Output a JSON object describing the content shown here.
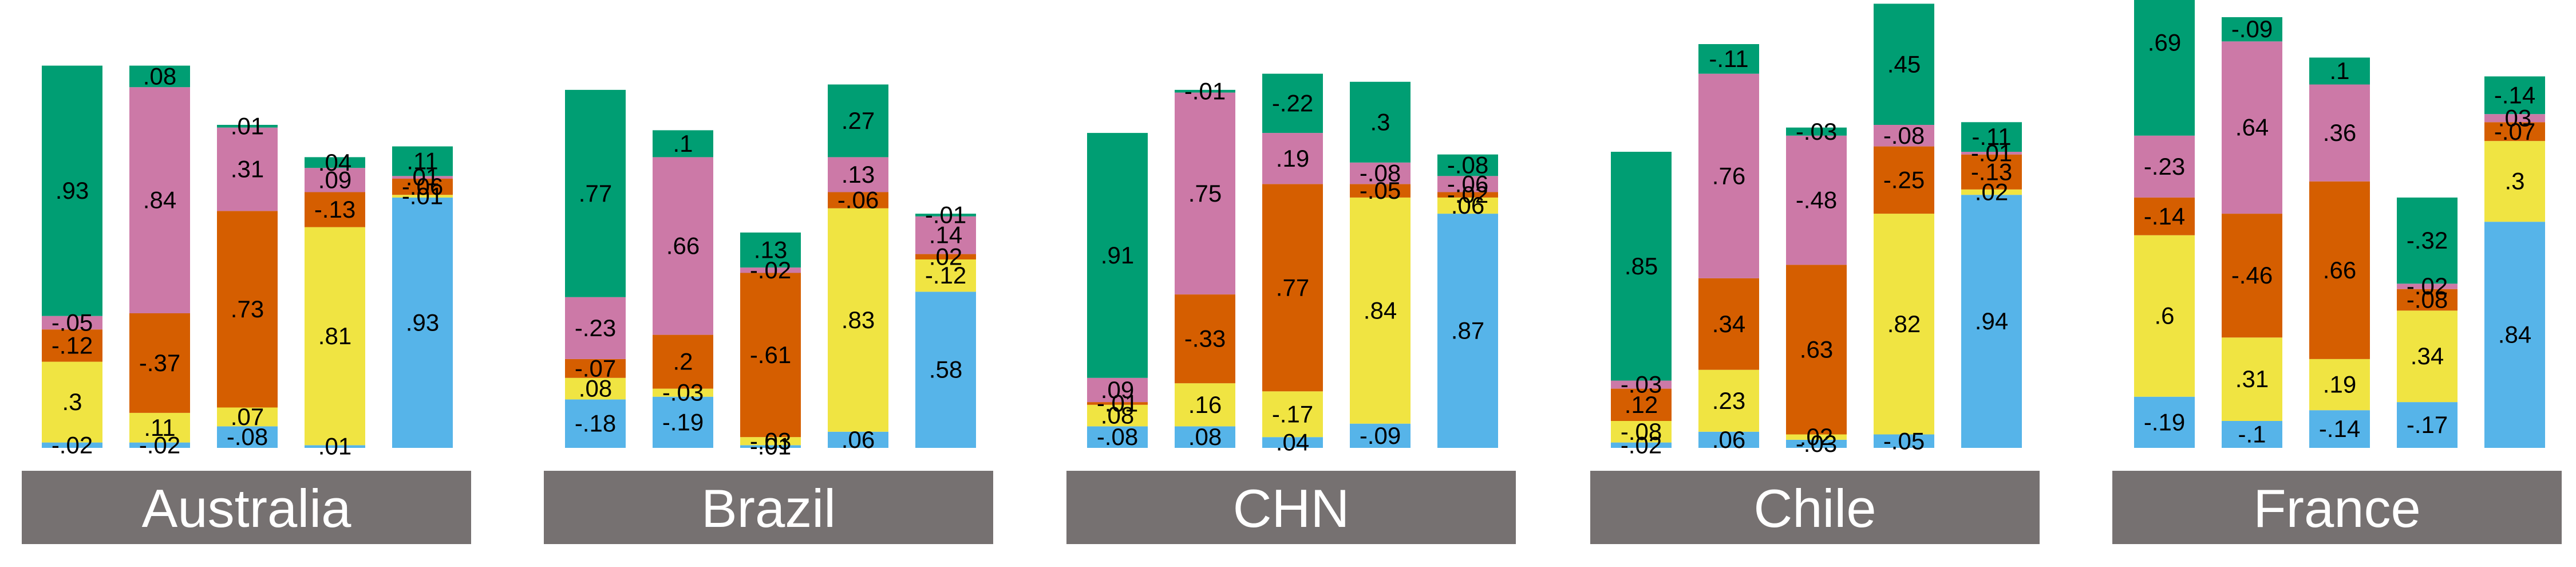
{
  "chart_data": {
    "type": "bar",
    "stacked": true,
    "colors": {
      "blue": "#56B4E9",
      "yellow": "#F0E442",
      "orange": "#D55E00",
      "pink": "#CC79A7",
      "green": "#009E73",
      "label_band": "#767171"
    },
    "panels": [
      {
        "name": "Australia",
        "bars": [
          {
            "segments": [
              {
                "c": "blue",
                "v": -0.02
              },
              {
                "c": "yellow",
                "v": 0.3
              },
              {
                "c": "orange",
                "v": -0.12
              },
              {
                "c": "pink",
                "v": -0.05
              },
              {
                "c": "green",
                "v": 0.93
              }
            ]
          },
          {
            "segments": [
              {
                "c": "blue",
                "v": -0.02
              },
              {
                "c": "yellow",
                "v": 0.11
              },
              {
                "c": "orange",
                "v": -0.37
              },
              {
                "c": "pink",
                "v": 0.84
              },
              {
                "c": "green",
                "v": 0.08
              }
            ]
          },
          {
            "segments": [
              {
                "c": "blue",
                "v": -0.08
              },
              {
                "c": "yellow",
                "v": 0.07
              },
              {
                "c": "orange",
                "v": 0.73
              },
              {
                "c": "pink",
                "v": 0.31
              },
              {
                "c": "green",
                "v": 0.01
              }
            ]
          },
          {
            "segments": [
              {
                "c": "blue",
                "v": 0.01
              },
              {
                "c": "yellow",
                "v": 0.81
              },
              {
                "c": "orange",
                "v": -0.13
              },
              {
                "c": "pink",
                "v": 0.09
              },
              {
                "c": "green",
                "v": 0.04
              }
            ]
          },
          {
            "segments": [
              {
                "c": "blue",
                "v": 0.93
              },
              {
                "c": "yellow",
                "v": -0.01
              },
              {
                "c": "orange",
                "v": -0.06
              },
              {
                "c": "pink",
                "v": 0.01
              },
              {
                "c": "green",
                "v": 0.11
              }
            ]
          }
        ]
      },
      {
        "name": "Brazil",
        "bars": [
          {
            "segments": [
              {
                "c": "blue",
                "v": -0.18
              },
              {
                "c": "yellow",
                "v": 0.08
              },
              {
                "c": "orange",
                "v": -0.07
              },
              {
                "c": "pink",
                "v": -0.23
              },
              {
                "c": "green",
                "v": 0.77
              }
            ]
          },
          {
            "segments": [
              {
                "c": "blue",
                "v": -0.19
              },
              {
                "c": "yellow",
                "v": -0.03
              },
              {
                "c": "orange",
                "v": 0.2
              },
              {
                "c": "pink",
                "v": 0.66
              },
              {
                "c": "green",
                "v": 0.1
              }
            ]
          },
          {
            "segments": [
              {
                "c": "blue",
                "v": -0.01
              },
              {
                "c": "yellow",
                "v": -0.03
              },
              {
                "c": "orange",
                "v": -0.61
              },
              {
                "c": "pink",
                "v": -0.02
              },
              {
                "c": "green",
                "v": 0.13
              }
            ]
          },
          {
            "segments": [
              {
                "c": "blue",
                "v": 0.06
              },
              {
                "c": "yellow",
                "v": 0.83
              },
              {
                "c": "orange",
                "v": -0.06
              },
              {
                "c": "pink",
                "v": 0.13
              },
              {
                "c": "green",
                "v": 0.27
              }
            ]
          },
          {
            "segments": [
              {
                "c": "blue",
                "v": 0.58
              },
              {
                "c": "yellow",
                "v": -0.12
              },
              {
                "c": "orange",
                "v": 0.02
              },
              {
                "c": "pink",
                "v": 0.14
              },
              {
                "c": "green",
                "v": -0.01
              }
            ]
          }
        ]
      },
      {
        "name": "CHN",
        "bars": [
          {
            "segments": [
              {
                "c": "blue",
                "v": -0.08
              },
              {
                "c": "yellow",
                "v": 0.08
              },
              {
                "c": "orange",
                "v": -0.01
              },
              {
                "c": "pink",
                "v": 0.09
              },
              {
                "c": "green",
                "v": 0.91
              }
            ]
          },
          {
            "segments": [
              {
                "c": "blue",
                "v": 0.08
              },
              {
                "c": "yellow",
                "v": 0.16
              },
              {
                "c": "orange",
                "v": -0.33
              },
              {
                "c": "pink",
                "v": 0.75
              },
              {
                "c": "green",
                "v": -0.01
              }
            ]
          },
          {
            "segments": [
              {
                "c": "blue",
                "v": 0.04
              },
              {
                "c": "yellow",
                "v": -0.17
              },
              {
                "c": "orange",
                "v": 0.77
              },
              {
                "c": "pink",
                "v": 0.19
              },
              {
                "c": "green",
                "v": -0.22
              }
            ]
          },
          {
            "segments": [
              {
                "c": "blue",
                "v": -0.09
              },
              {
                "c": "yellow",
                "v": 0.84
              },
              {
                "c": "orange",
                "v": -0.05
              },
              {
                "c": "pink",
                "v": -0.08
              },
              {
                "c": "green",
                "v": 0.3
              }
            ]
          },
          {
            "segments": [
              {
                "c": "blue",
                "v": 0.87
              },
              {
                "c": "yellow",
                "v": 0.06
              },
              {
                "c": "orange",
                "v": -0.02
              },
              {
                "c": "pink",
                "v": -0.06
              },
              {
                "c": "green",
                "v": -0.08
              }
            ]
          }
        ]
      },
      {
        "name": "Chile",
        "bars": [
          {
            "segments": [
              {
                "c": "blue",
                "v": -0.02
              },
              {
                "c": "yellow",
                "v": -0.08
              },
              {
                "c": "orange",
                "v": 0.12
              },
              {
                "c": "pink",
                "v": -0.03
              },
              {
                "c": "green",
                "v": 0.85
              }
            ]
          },
          {
            "segments": [
              {
                "c": "blue",
                "v": 0.06
              },
              {
                "c": "yellow",
                "v": 0.23
              },
              {
                "c": "orange",
                "v": 0.34
              },
              {
                "c": "pink",
                "v": 0.76
              },
              {
                "c": "green",
                "v": -0.11
              }
            ]
          },
          {
            "segments": [
              {
                "c": "blue",
                "v": -0.03
              },
              {
                "c": "yellow",
                "v": 0.02
              },
              {
                "c": "orange",
                "v": 0.63
              },
              {
                "c": "pink",
                "v": -0.48
              },
              {
                "c": "green",
                "v": -0.03
              }
            ]
          },
          {
            "segments": [
              {
                "c": "blue",
                "v": -0.05
              },
              {
                "c": "yellow",
                "v": 0.82
              },
              {
                "c": "orange",
                "v": -0.25
              },
              {
                "c": "pink",
                "v": -0.08
              },
              {
                "c": "green",
                "v": 0.45
              }
            ]
          },
          {
            "segments": [
              {
                "c": "blue",
                "v": 0.94
              },
              {
                "c": "yellow",
                "v": 0.02
              },
              {
                "c": "orange",
                "v": -0.13
              },
              {
                "c": "pink",
                "v": -0.01
              },
              {
                "c": "green",
                "v": -0.11
              }
            ]
          }
        ]
      },
      {
        "name": "France",
        "bars": [
          {
            "segments": [
              {
                "c": "blue",
                "v": -0.19
              },
              {
                "c": "yellow",
                "v": 0.6
              },
              {
                "c": "orange",
                "v": -0.14
              },
              {
                "c": "pink",
                "v": -0.23
              },
              {
                "c": "green",
                "v": 0.69
              }
            ]
          },
          {
            "segments": [
              {
                "c": "blue",
                "v": -0.1
              },
              {
                "c": "yellow",
                "v": 0.31
              },
              {
                "c": "orange",
                "v": -0.46
              },
              {
                "c": "pink",
                "v": 0.64
              },
              {
                "c": "green",
                "v": -0.09
              }
            ]
          },
          {
            "segments": [
              {
                "c": "blue",
                "v": -0.14
              },
              {
                "c": "yellow",
                "v": 0.19
              },
              {
                "c": "orange",
                "v": 0.66
              },
              {
                "c": "pink",
                "v": 0.36
              },
              {
                "c": "green",
                "v": 0.1
              }
            ]
          },
          {
            "segments": [
              {
                "c": "blue",
                "v": -0.17
              },
              {
                "c": "yellow",
                "v": 0.34
              },
              {
                "c": "orange",
                "v": -0.08
              },
              {
                "c": "pink",
                "v": -0.02
              },
              {
                "c": "green",
                "v": -0.32
              }
            ]
          },
          {
            "segments": [
              {
                "c": "blue",
                "v": 0.84
              },
              {
                "c": "yellow",
                "v": 0.3
              },
              {
                "c": "orange",
                "v": -0.07
              },
              {
                "c": "pink",
                "v": 0.03
              },
              {
                "c": "green",
                "v": -0.14
              }
            ]
          }
        ]
      }
    ]
  }
}
